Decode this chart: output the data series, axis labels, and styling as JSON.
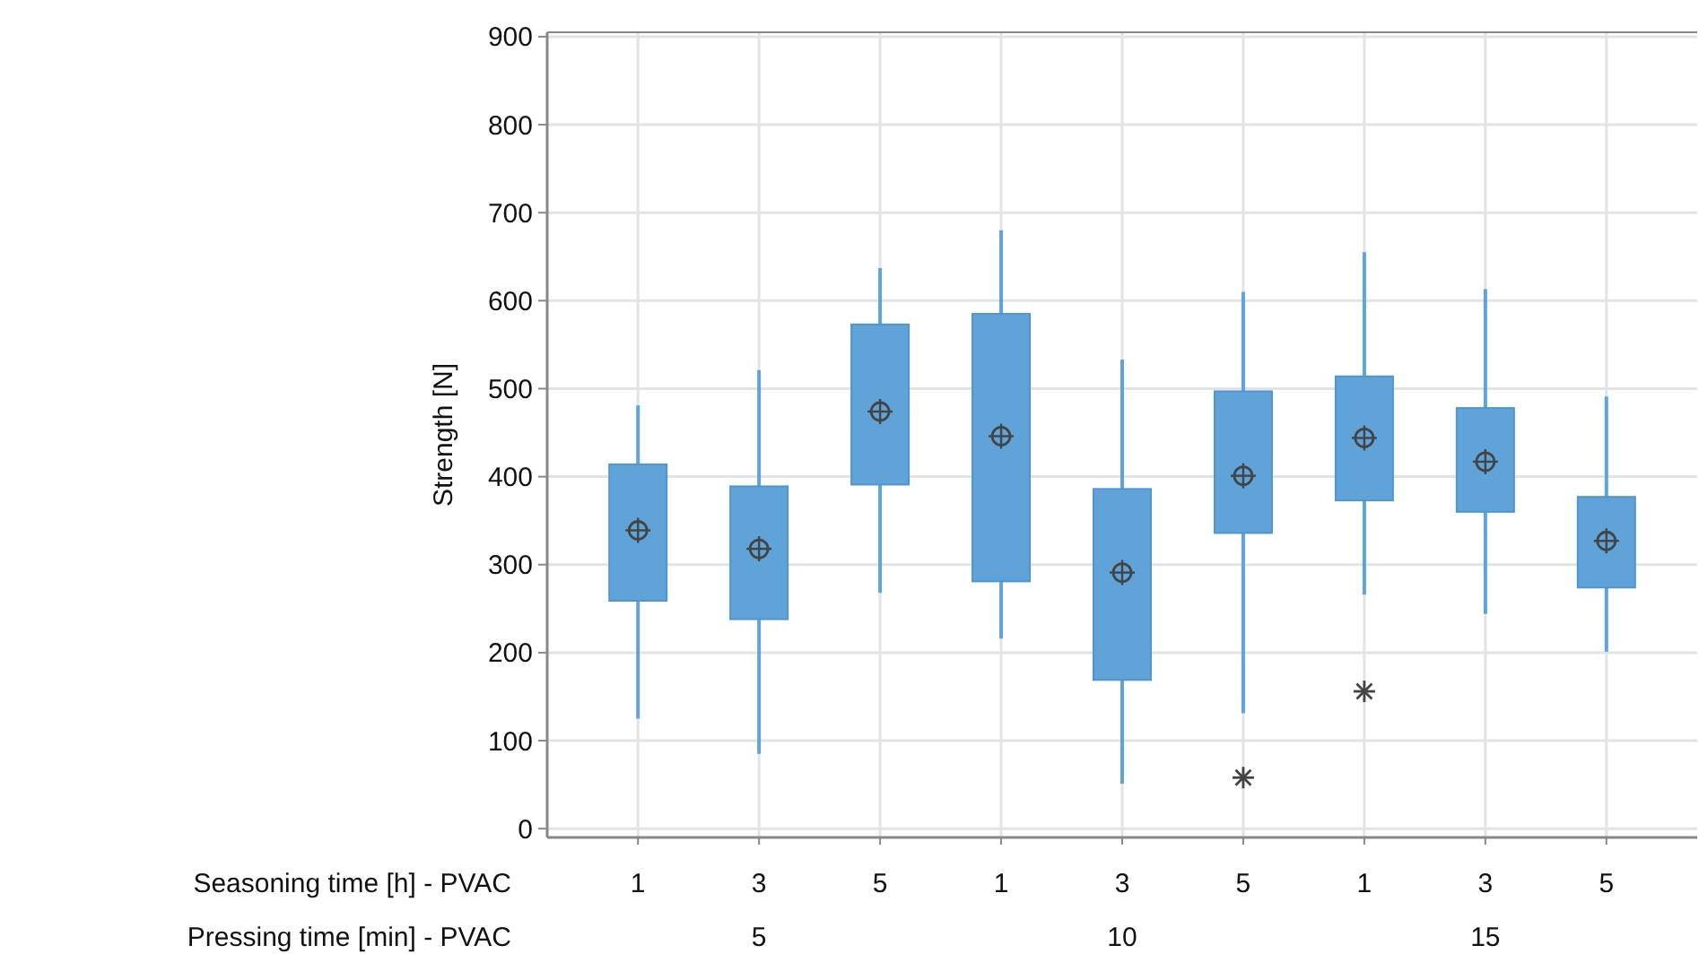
{
  "chart_data": {
    "type": "box",
    "ylabel": "Strength [N]",
    "xlabel": "Seasoning time [h] - PVAC",
    "categories": [
      "1",
      "3",
      "5",
      "1",
      "3",
      "5",
      "1",
      "3",
      "5"
    ],
    "annotations": [
      "Pressing time [min] - PVAC",
      "5",
      "10",
      "15"
    ],
    "color": "#5fa3d9",
    "grid": true,
    "ylim": [
      -10,
      905
    ],
    "yticks": [
      0,
      100,
      200,
      300,
      400,
      500,
      600,
      700,
      800,
      900
    ],
    "boxes": [
      {
        "low": 125,
        "q1": 259,
        "median": null,
        "q3": 414,
        "high": 481,
        "mean": 339
      },
      {
        "low": 85,
        "q1": 238,
        "median": null,
        "q3": 389,
        "high": 521,
        "mean": 318
      },
      {
        "low": 268,
        "q1": 391,
        "median": null,
        "q3": 573,
        "high": 637,
        "mean": 474
      },
      {
        "low": 216,
        "q1": 281,
        "median": null,
        "q3": 585,
        "high": 680,
        "mean": 446
      },
      {
        "low": 51,
        "q1": 169,
        "median": null,
        "q3": 386,
        "high": 533,
        "mean": 291
      },
      {
        "low": 131,
        "q1": 336,
        "median": null,
        "q3": 497,
        "high": 610,
        "mean": 401,
        "outliers": [
          58
        ]
      },
      {
        "low": 266,
        "q1": 373,
        "median": null,
        "q3": 514,
        "high": 655,
        "mean": 444,
        "outliers": [
          156
        ]
      },
      {
        "low": 244,
        "q1": 360,
        "median": null,
        "q3": 478,
        "high": 613,
        "mean": 417
      },
      {
        "low": 201,
        "q1": 274,
        "median": null,
        "q3": 377,
        "high": 491,
        "mean": 327
      }
    ]
  }
}
